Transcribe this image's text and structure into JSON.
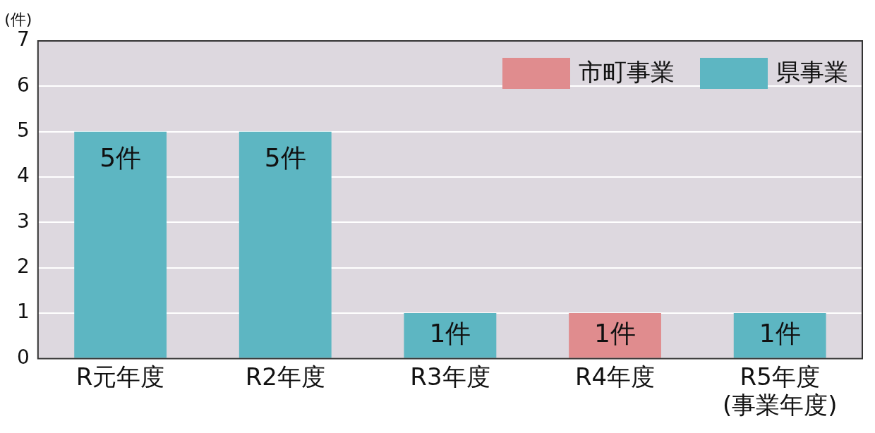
{
  "chart_data": {
    "type": "bar",
    "ylabel": "(件)",
    "stacked": true,
    "categories": [
      "R元年度",
      "R2年度",
      "R3年度",
      "R4年度",
      "R5年度\n(事業年度)"
    ],
    "series": [
      {
        "name": "市町事業",
        "color": "#e08c8e",
        "values": [
          0,
          0,
          0,
          1,
          0
        ],
        "value_labels": [
          null,
          null,
          null,
          "1件",
          null
        ]
      },
      {
        "name": "県事業",
        "color": "#5db6c2",
        "values": [
          5,
          5,
          1,
          0,
          1
        ],
        "value_labels": [
          "5件",
          "5件",
          "1件",
          null,
          "1件"
        ]
      }
    ],
    "ylim": [
      0,
      7
    ],
    "yticks": [
      0,
      1,
      2,
      3,
      4,
      5,
      6,
      7
    ],
    "grid": "y",
    "legend": "top right"
  }
}
